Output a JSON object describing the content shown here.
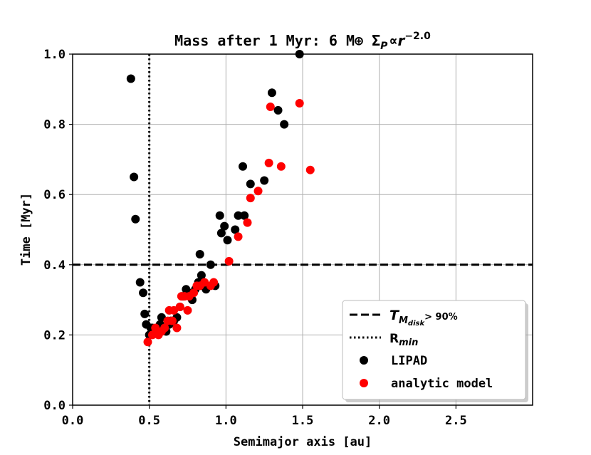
{
  "chart_data": {
    "type": "scatter",
    "title": "Mass after 1 Myr: 6 M⊕ Σ",
    "title_math": {
      "sigma_sub": "P",
      "propto": "∝",
      "r": "r",
      "exponent": "−2.0"
    },
    "xlabel": "Semimajor axis [au]",
    "ylabel": "Time [Myr]",
    "xlim": [
      0.0,
      3.0
    ],
    "ylim": [
      0.0,
      1.0
    ],
    "xticks": [
      0.0,
      0.5,
      1.0,
      1.5,
      2.0,
      2.5
    ],
    "xtick_labels": [
      "0.0",
      "0.5",
      "1.0",
      "1.5",
      "2.0",
      "2.5"
    ],
    "yticks": [
      0.0,
      0.2,
      0.4,
      0.6,
      0.8,
      1.0
    ],
    "ytick_labels": [
      "0.0",
      "0.2",
      "0.4",
      "0.6",
      "0.8",
      "1.0"
    ],
    "grid": true,
    "legend_position": "lower-right",
    "reference_lines": [
      {
        "name": "T_M_disk>90%",
        "orientation": "horizontal",
        "value": 0.4,
        "style": "dashed",
        "color": "#000000"
      },
      {
        "name": "R_min",
        "orientation": "vertical",
        "value": 0.5,
        "style": "dotted",
        "color": "#000000"
      }
    ],
    "legend": [
      {
        "label_main": "T",
        "label_sub": "M",
        "label_subsub": "disk",
        "label_tail": "> 90%",
        "kind": "dashed-line"
      },
      {
        "label_main": "R",
        "label_sub": "min",
        "kind": "dotted-line"
      },
      {
        "label": "LIPAD",
        "kind": "marker",
        "color": "#000000"
      },
      {
        "label": "analytic model",
        "kind": "marker",
        "color": "#ff0000"
      }
    ],
    "series": [
      {
        "name": "LIPAD",
        "color": "#000000",
        "points": [
          [
            0.38,
            0.93
          ],
          [
            0.4,
            0.65
          ],
          [
            0.41,
            0.53
          ],
          [
            0.44,
            0.35
          ],
          [
            0.46,
            0.32
          ],
          [
            0.47,
            0.26
          ],
          [
            0.48,
            0.23
          ],
          [
            0.5,
            0.2
          ],
          [
            0.51,
            0.22
          ],
          [
            0.52,
            0.22
          ],
          [
            0.53,
            0.21
          ],
          [
            0.55,
            0.21
          ],
          [
            0.56,
            0.22
          ],
          [
            0.57,
            0.23
          ],
          [
            0.58,
            0.25
          ],
          [
            0.6,
            0.22
          ],
          [
            0.61,
            0.21
          ],
          [
            0.63,
            0.23
          ],
          [
            0.64,
            0.24
          ],
          [
            0.66,
            0.24
          ],
          [
            0.68,
            0.25
          ],
          [
            0.7,
            0.28
          ],
          [
            0.72,
            0.31
          ],
          [
            0.74,
            0.33
          ],
          [
            0.76,
            0.32
          ],
          [
            0.78,
            0.3
          ],
          [
            0.8,
            0.33
          ],
          [
            0.82,
            0.35
          ],
          [
            0.84,
            0.37
          ],
          [
            0.85,
            0.34
          ],
          [
            0.83,
            0.43
          ],
          [
            0.87,
            0.33
          ],
          [
            0.9,
            0.4
          ],
          [
            0.93,
            0.34
          ],
          [
            0.96,
            0.54
          ],
          [
            0.97,
            0.49
          ],
          [
            0.99,
            0.51
          ],
          [
            1.01,
            0.47
          ],
          [
            1.06,
            0.5
          ],
          [
            1.08,
            0.54
          ],
          [
            1.11,
            0.68
          ],
          [
            1.12,
            0.54
          ],
          [
            1.16,
            0.63
          ],
          [
            1.25,
            0.64
          ],
          [
            1.3,
            0.89
          ],
          [
            1.34,
            0.84
          ],
          [
            1.38,
            0.8
          ],
          [
            1.48,
            1.0
          ]
        ]
      },
      {
        "name": "analytic model",
        "color": "#ff0000",
        "points": [
          [
            0.49,
            0.18
          ],
          [
            0.52,
            0.2
          ],
          [
            0.54,
            0.22
          ],
          [
            0.56,
            0.2
          ],
          [
            0.58,
            0.21
          ],
          [
            0.6,
            0.22
          ],
          [
            0.62,
            0.24
          ],
          [
            0.63,
            0.27
          ],
          [
            0.65,
            0.24
          ],
          [
            0.66,
            0.27
          ],
          [
            0.68,
            0.22
          ],
          [
            0.7,
            0.28
          ],
          [
            0.71,
            0.31
          ],
          [
            0.73,
            0.31
          ],
          [
            0.75,
            0.27
          ],
          [
            0.76,
            0.31
          ],
          [
            0.79,
            0.32
          ],
          [
            0.81,
            0.34
          ],
          [
            0.83,
            0.34
          ],
          [
            0.86,
            0.35
          ],
          [
            0.9,
            0.34
          ],
          [
            0.92,
            0.35
          ],
          [
            1.02,
            0.41
          ],
          [
            1.08,
            0.48
          ],
          [
            1.14,
            0.52
          ],
          [
            1.16,
            0.59
          ],
          [
            1.21,
            0.61
          ],
          [
            1.28,
            0.69
          ],
          [
            1.29,
            0.85
          ],
          [
            1.36,
            0.68
          ],
          [
            1.48,
            0.86
          ],
          [
            1.55,
            0.67
          ]
        ]
      }
    ]
  }
}
